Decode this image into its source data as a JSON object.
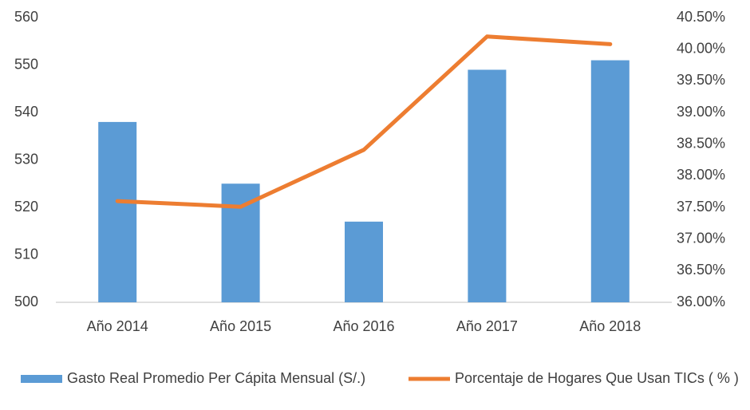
{
  "chart_data": {
    "type": "bar_line",
    "categories": [
      "Año 2014",
      "Año 2015",
      "Año 2016",
      "Año 2017",
      "Año 2018"
    ],
    "series": [
      {
        "name": "Gasto Real Promedio Per Cápita Mensual (S/.)",
        "type": "bar",
        "color": "#5b9bd5",
        "values": [
          538,
          525,
          517,
          549,
          551
        ]
      },
      {
        "name": "Porcentaje de Hogares Que Usan TICs ( % )",
        "type": "line",
        "color": "#ed7d31",
        "axis": "y2",
        "values": [
          37.6,
          37.51,
          38.41,
          40.2,
          40.08
        ]
      }
    ],
    "ylim": [
      500,
      560
    ],
    "yticks": [
      500,
      510,
      520,
      530,
      540,
      550,
      560
    ],
    "y2lim": [
      36,
      40.5
    ],
    "y2ticks": [
      {
        "value": 36,
        "label": "36.00%"
      },
      {
        "value": 36.5,
        "label": "36.50%"
      },
      {
        "value": 37,
        "label": "37.00%"
      },
      {
        "value": 37.5,
        "label": "37.50%"
      },
      {
        "value": 38,
        "label": "38.00%"
      },
      {
        "value": 38.5,
        "label": "38.50%"
      },
      {
        "value": 39,
        "label": "39.00%"
      },
      {
        "value": 39.5,
        "label": "39.50%"
      },
      {
        "value": 40,
        "label": "40.00%"
      },
      {
        "value": 40.5,
        "label": "40.50%"
      }
    ],
    "grid": false,
    "legend": "bottom"
  }
}
